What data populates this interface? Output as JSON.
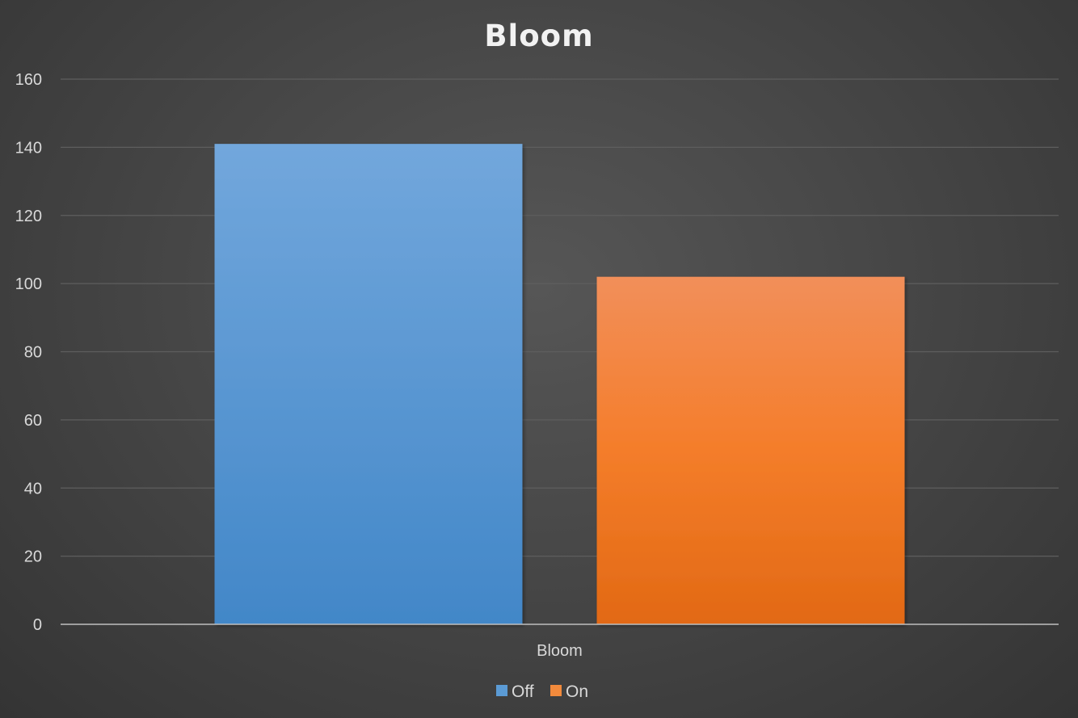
{
  "chart_data": {
    "type": "bar",
    "title": "Bloom",
    "categories": [
      "Bloom"
    ],
    "series": [
      {
        "name": "Off",
        "values": [
          141
        ],
        "color": "#5b9bd5"
      },
      {
        "name": "On",
        "values": [
          102
        ],
        "color": "#f28a3c"
      }
    ],
    "ylim": [
      0,
      160
    ],
    "yticks": [
      0,
      20,
      40,
      60,
      80,
      100,
      120,
      140,
      160
    ],
    "xlabel": "",
    "ylabel": "",
    "grid": true,
    "legend_position": "bottom"
  }
}
